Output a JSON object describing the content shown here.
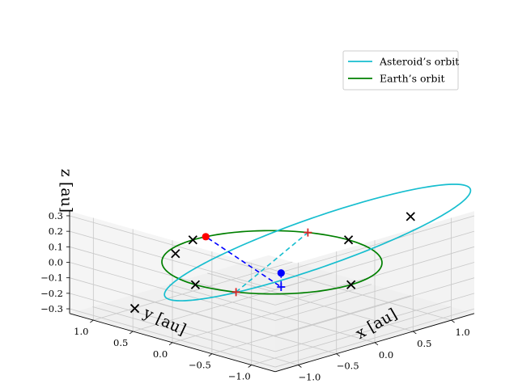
{
  "chart_data": {
    "type": "line",
    "projection": "3d",
    "title": "",
    "legend": {
      "placement": "top-right",
      "entries": [
        "Asteroid’s orbit",
        "Earth’s orbit"
      ]
    },
    "grid": true,
    "axes": {
      "x": {
        "label": "x [au]",
        "lim": [
          -1.3,
          1.3
        ],
        "ticks": [
          -1.0,
          -0.5,
          0.0,
          0.5,
          1.0
        ],
        "tick_labels": [
          "−1.0",
          "−0.5",
          "0.0",
          "0.5",
          "1.0"
        ]
      },
      "y": {
        "label": "y [au]",
        "lim": [
          -1.3,
          1.3
        ],
        "ticks": [
          -1.0,
          -0.5,
          0.0,
          0.5,
          1.0
        ],
        "tick_labels": [
          "−1.0",
          "−0.5",
          "0.0",
          "0.5",
          "1.0"
        ]
      },
      "z": {
        "label": "z [au]",
        "lim": [
          -0.33,
          0.33
        ],
        "ticks": [
          -0.3,
          -0.2,
          -0.1,
          0.0,
          0.1,
          0.2,
          0.3
        ],
        "tick_labels": [
          "−0.3",
          "−0.2",
          "−0.1",
          "0.0",
          "0.1",
          "0.2",
          "0.3"
        ]
      }
    },
    "series": [
      {
        "name": "Asteroid’s orbit",
        "color": "#17becf",
        "kind": "ellipse",
        "semi_major_axis": 1.45,
        "eccentricity": 0.34,
        "inclination_deg": 14,
        "node_longitude_deg": 205,
        "argument_of_perihelion_deg": 320
      },
      {
        "name": "Earth’s orbit",
        "color": "#008000",
        "kind": "circle",
        "radius": 1.0
      }
    ],
    "line_of_nodes": {
      "color": "#17becf",
      "style": "dashed",
      "from": [
        -0.906,
        -0.423,
        0
      ],
      "to": [
        0.906,
        0.423,
        0
      ]
    },
    "node_markers": {
      "marker": "+",
      "color": "#d62728",
      "points": [
        [
          -0.906,
          -0.423,
          0
        ],
        [
          0.906,
          0.423,
          0
        ]
      ]
    },
    "x_markers": {
      "marker": "x",
      "color": "#000000",
      "points": [
        [
          0.755,
          -1.022,
          0.334
        ],
        [
          -0.957,
          0.808,
          -0.276
        ],
        [
          1.0,
          0.0,
          0.0
        ],
        [
          -1.0,
          0.0,
          0.0
        ],
        [
          0.0,
          1.0,
          0.0
        ],
        [
          0.0,
          -1.0,
          0.0
        ],
        [
          0.0,
          1.22,
          -0.12
        ]
      ]
    },
    "asteroid_position": {
      "color": "#0000ff",
      "point": [
        -0.5,
        -0.6,
        0.09
      ],
      "projection_point": [
        -0.5,
        -0.6,
        0.0
      ],
      "marker": "+"
    },
    "earth_position": {
      "color": "#ff0000",
      "point": [
        0.156,
        0.988,
        0.0
      ]
    },
    "connector": {
      "color": "#0000ff",
      "style": "dashed",
      "points": [
        [
          -0.5,
          -0.6,
          0.09
        ],
        [
          -0.5,
          -0.6,
          0.0
        ],
        [
          0.156,
          0.988,
          0.0
        ]
      ]
    }
  }
}
